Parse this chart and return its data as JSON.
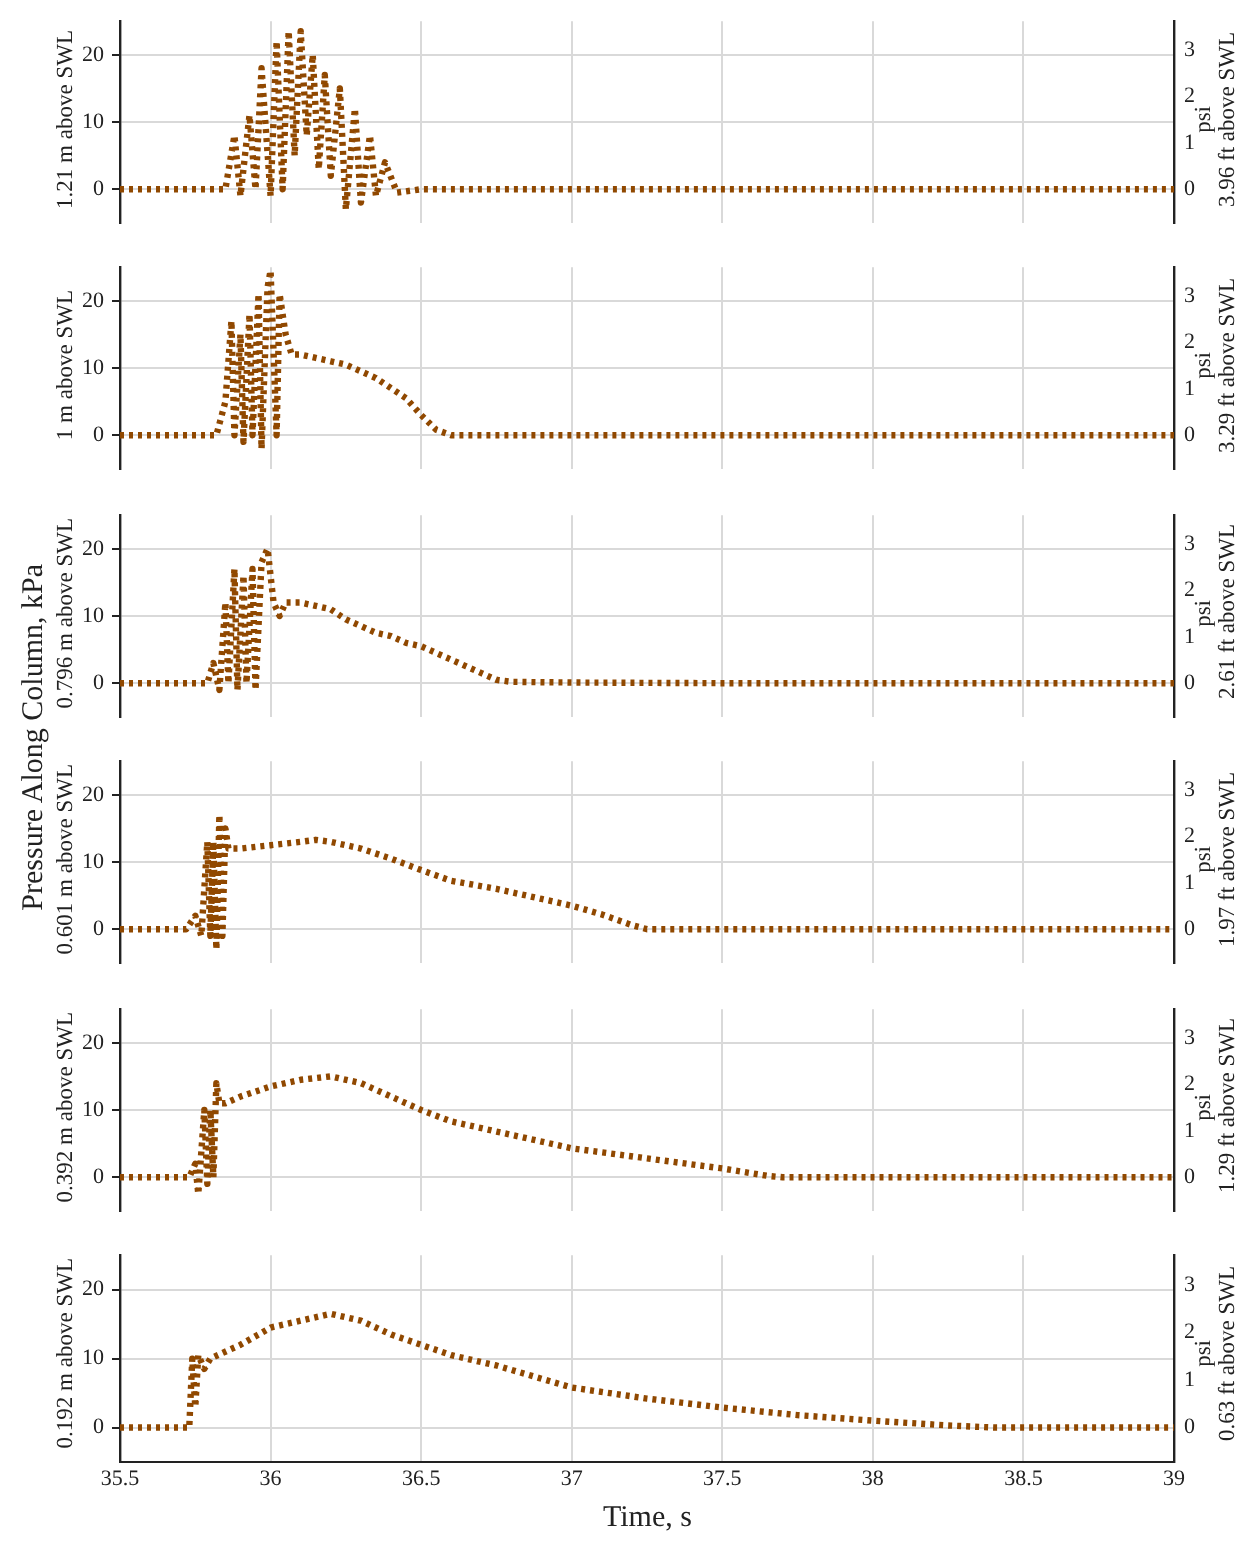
{
  "chart_data": [
    {
      "type": "line",
      "ylabel": "1.21 m above SWL",
      "y2label": "psi",
      "annotations": [
        "3.96 ft above SWL"
      ],
      "color": "#904800",
      "line_style": "dotted",
      "marker": "none",
      "grid": true,
      "legend": false,
      "tick_labels": "y",
      "x": [
        35.5,
        35.85,
        35.88,
        35.9,
        35.93,
        35.95,
        35.97,
        36.0,
        36.02,
        36.04,
        36.06,
        36.08,
        36.1,
        36.12,
        36.14,
        36.16,
        36.18,
        36.2,
        36.23,
        36.25,
        36.28,
        36.3,
        36.33,
        36.35,
        36.38,
        36.42,
        36.5,
        39
      ],
      "values": [
        0,
        0,
        8,
        -1,
        11,
        0,
        18,
        -1,
        22,
        0,
        23.5,
        5,
        23.5,
        8,
        20,
        3,
        17,
        2,
        15,
        -3,
        12,
        -2,
        8,
        -1,
        4,
        -0.5,
        0,
        0
      ],
      "xlim": [
        35.5,
        39
      ],
      "xticks": [
        35.5,
        36,
        36.5,
        37,
        37.5,
        38,
        38.5,
        39
      ],
      "ylim": [
        -5,
        25
      ],
      "yticks": [
        0,
        10,
        20
      ],
      "y2lim": [
        -0.725,
        3.626
      ],
      "y2ticks": [
        0,
        1,
        2,
        3
      ]
    },
    {
      "type": "line",
      "ylabel": "1 m above SWL",
      "y2label": "psi",
      "annotations": [
        "3.29 ft above SWL"
      ],
      "color": "#904800",
      "line_style": "dotted",
      "marker": "none",
      "grid": true,
      "legend": false,
      "tick_labels": "y",
      "x": [
        35.5,
        35.82,
        35.85,
        35.87,
        35.88,
        35.9,
        35.91,
        35.93,
        35.94,
        35.96,
        35.97,
        35.99,
        36.0,
        36.02,
        36.03,
        36.05,
        36.07,
        36.1,
        36.15,
        36.2,
        36.25,
        36.3,
        36.35,
        36.4,
        36.45,
        36.5,
        36.55,
        36.6,
        39
      ],
      "values": [
        0,
        0,
        5,
        17,
        0,
        15,
        -1,
        18,
        0,
        21,
        -2,
        22,
        24.5,
        0,
        21,
        15,
        12,
        12,
        11.5,
        11,
        10.5,
        9.5,
        8.5,
        7,
        5.5,
        3,
        0.8,
        0,
        0
      ],
      "xlim": [
        35.5,
        39
      ],
      "xticks": [
        35.5,
        36,
        36.5,
        37,
        37.5,
        38,
        38.5,
        39
      ],
      "ylim": [
        -5,
        25
      ],
      "yticks": [
        0,
        10,
        20
      ],
      "y2lim": [
        -0.725,
        3.626
      ],
      "y2ticks": [
        0,
        1,
        2,
        3
      ]
    },
    {
      "type": "line",
      "ylabel": "0.796 m above SWL",
      "y2label": "psi",
      "annotations": [
        "2.61 ft above SWL",
        "Pressure Along Column, kPa"
      ],
      "color": "#904800",
      "line_style": "dotted",
      "marker": "none",
      "grid": true,
      "legend": false,
      "tick_labels": "y",
      "x": [
        35.5,
        35.79,
        35.81,
        35.83,
        35.85,
        35.86,
        35.88,
        35.89,
        35.91,
        35.92,
        35.94,
        35.95,
        35.97,
        35.99,
        36.01,
        36.03,
        36.05,
        36.1,
        36.15,
        36.2,
        36.25,
        36.3,
        36.35,
        36.4,
        36.45,
        36.5,
        36.55,
        36.6,
        36.65,
        36.7,
        36.75,
        36.8,
        37.0,
        37.5,
        39
      ],
      "values": [
        0,
        0,
        3,
        -1,
        12,
        0,
        17,
        -1,
        16,
        0,
        17,
        -1,
        18,
        20,
        12,
        10,
        12,
        12,
        11.5,
        11,
        9.5,
        8.5,
        7.5,
        7,
        6,
        5.5,
        4.5,
        3.5,
        2.5,
        1.5,
        0.5,
        0.2,
        0.1,
        0,
        0
      ],
      "xlim": [
        35.5,
        39
      ],
      "xticks": [
        35.5,
        36,
        36.5,
        37,
        37.5,
        38,
        38.5,
        39
      ],
      "ylim": [
        -5,
        25
      ],
      "yticks": [
        0,
        10,
        20
      ],
      "y2lim": [
        -0.725,
        3.626
      ],
      "y2ticks": [
        0,
        1,
        2,
        3
      ]
    },
    {
      "type": "line",
      "ylabel": "0.601 m above SWL",
      "y2label": "psi",
      "annotations": [
        "1.97 ft above SWL"
      ],
      "color": "#904800",
      "line_style": "dotted",
      "marker": "none",
      "grid": true,
      "legend": false,
      "tick_labels": "y",
      "x": [
        35.5,
        35.72,
        35.75,
        35.77,
        35.79,
        35.8,
        35.81,
        35.82,
        35.83,
        35.84,
        35.85,
        35.86,
        35.9,
        36.0,
        36.1,
        36.15,
        36.2,
        36.3,
        36.4,
        36.5,
        36.6,
        36.75,
        36.9,
        37.0,
        37.1,
        37.2,
        37.25,
        39
      ],
      "values": [
        0,
        0,
        2,
        -1,
        13,
        -1,
        13,
        -3,
        17,
        -1,
        15,
        12,
        12,
        12.5,
        13,
        13.3,
        13,
        12,
        10.5,
        8.8,
        7.2,
        6,
        4.5,
        3.5,
        2.2,
        0.6,
        0,
        0
      ],
      "xlim": [
        35.5,
        39
      ],
      "xticks": [
        35.5,
        36,
        36.5,
        37,
        37.5,
        38,
        38.5,
        39
      ],
      "ylim": [
        -5,
        25
      ],
      "yticks": [
        0,
        10,
        20
      ],
      "y2lim": [
        -0.725,
        3.626
      ],
      "y2ticks": [
        0,
        1,
        2,
        3
      ]
    },
    {
      "type": "line",
      "ylabel": "0.392 m above SWL",
      "y2label": "psi",
      "annotations": [
        "1.29 ft above SWL"
      ],
      "color": "#904800",
      "line_style": "dotted",
      "marker": "none",
      "grid": true,
      "legend": false,
      "tick_labels": "y",
      "x": [
        35.5,
        35.73,
        35.75,
        35.76,
        35.78,
        35.79,
        35.8,
        35.81,
        35.82,
        35.83,
        35.85,
        35.9,
        36.0,
        36.1,
        36.2,
        36.3,
        36.4,
        36.5,
        36.6,
        36.75,
        37.0,
        37.25,
        37.5,
        37.65,
        37.7,
        39
      ],
      "values": [
        0,
        0,
        2,
        -2.5,
        10,
        -1,
        10,
        0,
        14,
        11,
        11,
        12,
        13.5,
        14.5,
        15,
        14,
        12,
        10,
        8.3,
        6.8,
        4.3,
        2.8,
        1.3,
        0.2,
        0,
        0
      ],
      "xlim": [
        35.5,
        39
      ],
      "xticks": [
        35.5,
        36,
        36.5,
        37,
        37.5,
        38,
        38.5,
        39
      ],
      "ylim": [
        -5,
        25
      ],
      "yticks": [
        0,
        10,
        20
      ],
      "y2lim": [
        -0.725,
        3.626
      ],
      "y2ticks": [
        0,
        1,
        2,
        3
      ]
    },
    {
      "type": "line",
      "xlabel": "Time, s",
      "ylabel": "0.192 m above SWL",
      "y2label": "psi",
      "annotations": [
        "0.63 ft above SWL"
      ],
      "color": "#904800",
      "line_style": "dotted",
      "marker": "none",
      "grid": true,
      "legend": false,
      "x": [
        35.5,
        35.71,
        35.73,
        35.74,
        35.75,
        35.76,
        35.78,
        35.8,
        35.9,
        36.0,
        36.1,
        36.2,
        36.3,
        36.4,
        36.5,
        36.6,
        36.75,
        37.0,
        37.25,
        37.5,
        37.75,
        38.0,
        38.25,
        38.4,
        39
      ],
      "values": [
        0,
        0,
        0,
        10,
        3,
        10.5,
        8.5,
        10,
        12,
        14.5,
        15.5,
        16.5,
        15.5,
        13.5,
        12,
        10.5,
        9,
        5.8,
        4.2,
        2.9,
        1.8,
        1.0,
        0.3,
        0,
        0
      ],
      "xlim": [
        35.5,
        39
      ],
      "xticks": [
        35.5,
        36,
        36.5,
        37,
        37.5,
        38,
        38.5,
        39
      ],
      "ylim": [
        -5,
        25
      ],
      "yticks": [
        0,
        10,
        20
      ],
      "y2lim": [
        -0.725,
        3.626
      ],
      "y2ticks": [
        0,
        1,
        2,
        3
      ]
    }
  ]
}
